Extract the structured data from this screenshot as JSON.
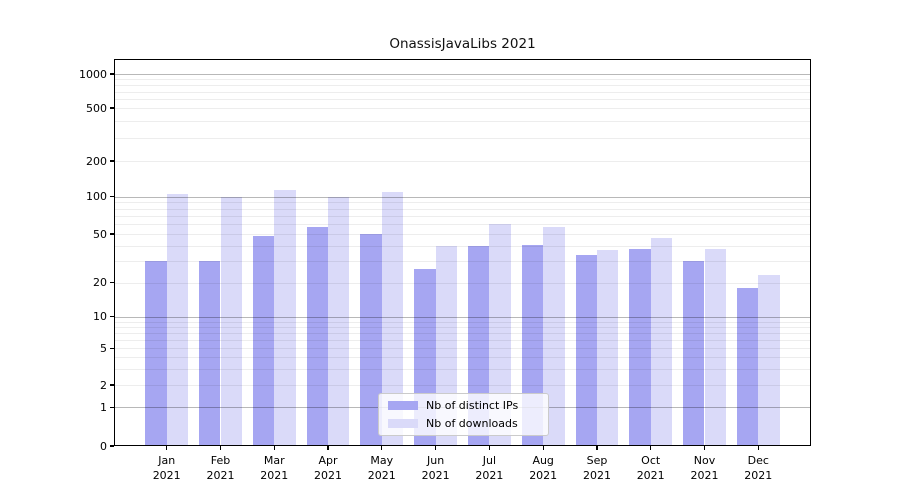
{
  "title": "OnassisJavaLibs 2021",
  "legend": {
    "items": [
      {
        "label": "Nb of distinct IPs",
        "color": "#a6a6f2"
      },
      {
        "label": "Nb of downloads",
        "color": "#dadaf9"
      }
    ]
  },
  "chart_data": {
    "type": "bar",
    "title": "OnassisJavaLibs 2021",
    "categories": [
      "Jan 2021",
      "Feb 2021",
      "Mar 2021",
      "Apr 2021",
      "May 2021",
      "Jun 2021",
      "Jul 2021",
      "Aug 2021",
      "Sep 2021",
      "Oct 2021",
      "Nov 2021",
      "Dec 2021"
    ],
    "series": [
      {
        "name": "Nb of distinct IPs",
        "color": "#a6a6f2",
        "values": [
          30,
          30,
          48,
          57,
          50,
          26,
          40,
          41,
          34,
          38,
          30,
          18
        ]
      },
      {
        "name": "Nb of downloads",
        "color": "#dadaf9",
        "values": [
          105,
          100,
          115,
          100,
          110,
          40,
          60,
          57,
          37,
          46,
          38,
          23
        ]
      }
    ],
    "xlabel": "",
    "ylabel": "",
    "yscale": "symlog",
    "y_ticks": [
      0,
      1,
      2,
      5,
      10,
      20,
      50,
      100,
      200,
      500,
      1000
    ],
    "ylim": [
      0,
      1300
    ],
    "grid": true,
    "legend_position": "lower center"
  }
}
